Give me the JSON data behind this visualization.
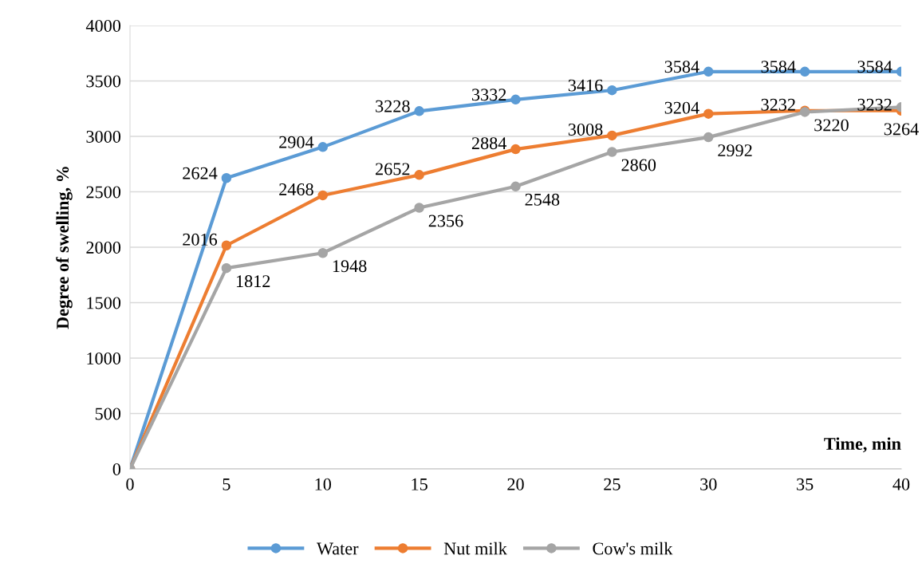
{
  "chart_data": {
    "type": "line",
    "xlabel": "Time, min",
    "ylabel": "Degree of swelling, %",
    "x": [
      0,
      5,
      10,
      15,
      20,
      25,
      30,
      35,
      40
    ],
    "xlim": [
      0,
      40
    ],
    "xticks": [
      0,
      5,
      10,
      15,
      20,
      25,
      30,
      35,
      40
    ],
    "ylim": [
      0,
      4000
    ],
    "yticks": [
      0,
      500,
      1000,
      1500,
      2000,
      2500,
      3000,
      3500,
      4000
    ],
    "grid": "y",
    "legend": "bottom",
    "marker": "circle",
    "line_style": "solid",
    "series": [
      {
        "name": "Water",
        "color": "#5b9bd5",
        "values": [
          0,
          2624,
          2904,
          3228,
          3332,
          3416,
          3584,
          3584,
          3584
        ],
        "value_labels": [
          null,
          "2624",
          "2904",
          "3228",
          "3332",
          "3416",
          "3584",
          "3584",
          "3584"
        ]
      },
      {
        "name": "Nut milk",
        "color": "#ed7d31",
        "values": [
          0,
          2016,
          2468,
          2652,
          2884,
          3008,
          3204,
          3232,
          3232
        ],
        "value_labels": [
          null,
          "2016",
          "2468",
          "2652",
          "2884",
          "3008",
          "3204",
          "3232",
          "3232"
        ]
      },
      {
        "name": "Cow's milk",
        "color": "#a5a5a5",
        "values": [
          0,
          1812,
          1948,
          2356,
          2548,
          2860,
          2992,
          3220,
          3264
        ],
        "value_labels": [
          null,
          "1812",
          "1948",
          "2356",
          "2548",
          "2860",
          "2992",
          "3220",
          "3264"
        ]
      }
    ]
  }
}
